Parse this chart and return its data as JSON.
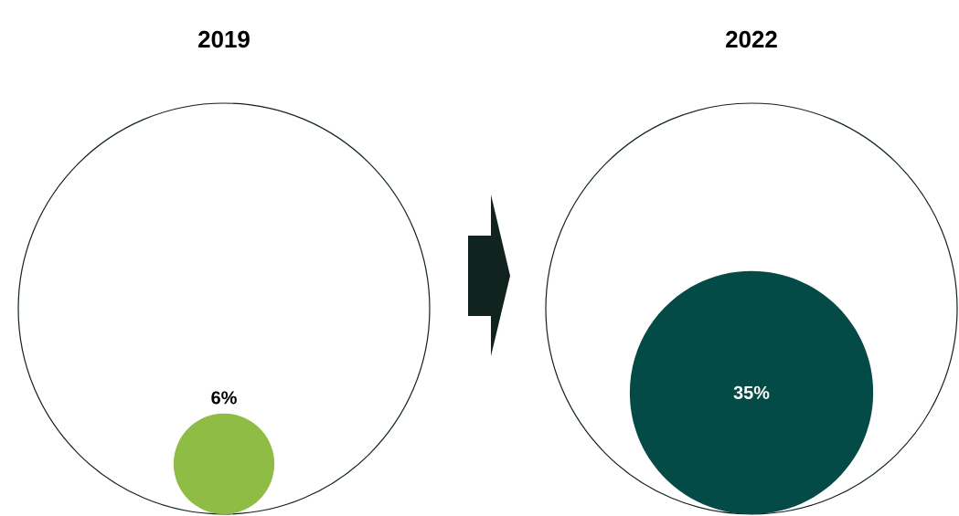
{
  "chart_data": {
    "type": "other",
    "categories": [
      "2019",
      "2022"
    ],
    "values": [
      6,
      35
    ],
    "colors": [
      "#8fbc45",
      "#044a47"
    ],
    "value_labels": [
      "6%",
      "35%"
    ]
  }
}
